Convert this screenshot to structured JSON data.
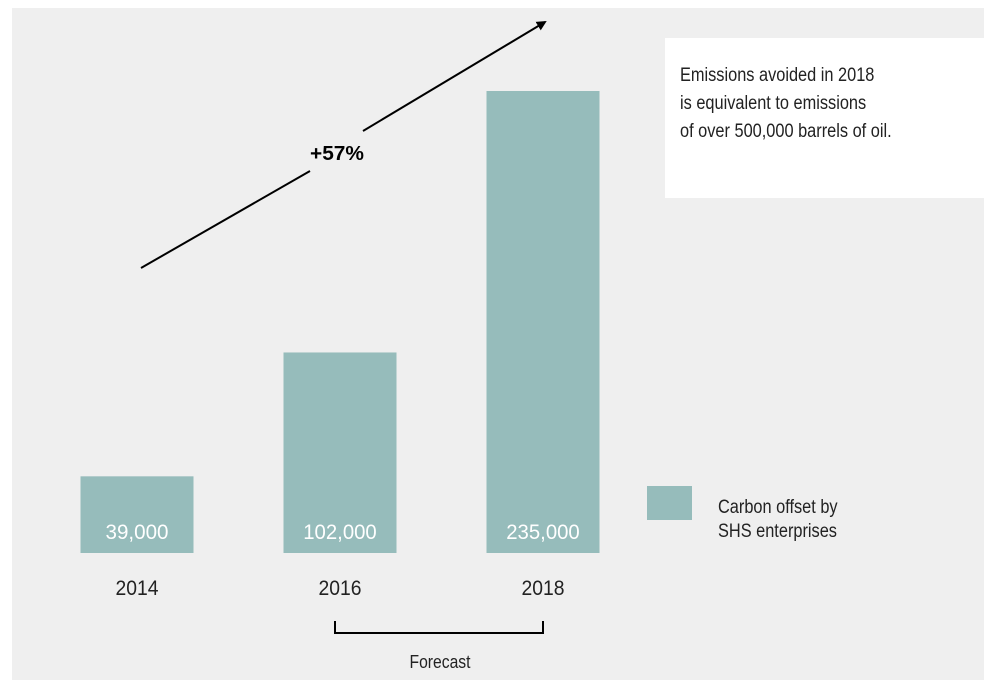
{
  "chart_data": {
    "type": "bar",
    "title": "",
    "xlabel": "",
    "ylabel": "",
    "categories": [
      "2014",
      "2016",
      "2018"
    ],
    "series": [
      {
        "name": "Carbon offset by SHS enterprises",
        "values": [
          39000,
          102000,
          235000
        ]
      }
    ],
    "value_labels": [
      "39,000",
      "102,000",
      "235,000"
    ],
    "bar_color": "#96bcbb",
    "trend_annotation": "+57%",
    "bracket_label": "Forecast",
    "bracket_categories": [
      "2016",
      "2018"
    ],
    "legend": {
      "label_lines": [
        "Carbon offset by",
        "SHS enterprises"
      ],
      "position": "right"
    },
    "grid": false
  },
  "note": {
    "lines": [
      "Emissions avoided in 2018",
      "is equivalent to emissions",
      "of over 500,000 barrels of oil."
    ]
  }
}
